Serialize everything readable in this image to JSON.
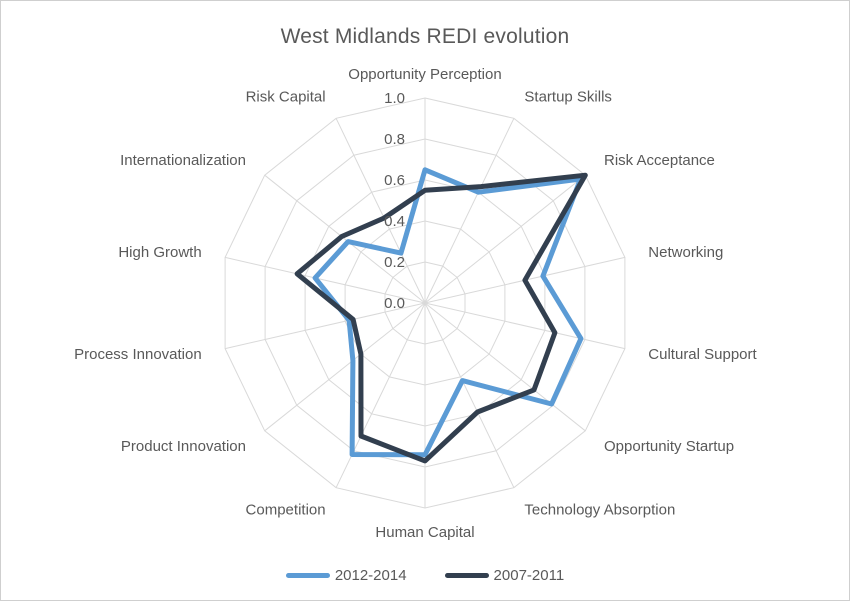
{
  "title": "West Midlands REDI evolution",
  "chart_data": {
    "type": "radar",
    "categories": [
      "Opportunity Perception",
      "Startup Skills",
      "Risk Acceptance",
      "Networking",
      "Cultural Support",
      "Opportunity Startup",
      "Technology Absorption",
      "Human Capital",
      "Competition",
      "Product Innovation",
      "Process Innovation",
      "High Growth",
      "Internationalization",
      "Risk Capital"
    ],
    "series": [
      {
        "name": "2012-2014",
        "color": "#5B9BD5",
        "values": [
          0.65,
          0.6,
          0.97,
          0.59,
          0.78,
          0.79,
          0.42,
          0.74,
          0.82,
          0.45,
          0.38,
          0.55,
          0.48,
          0.27
        ]
      },
      {
        "name": "2007-2011",
        "color": "#323F4F",
        "values": [
          0.55,
          0.63,
          1.0,
          0.5,
          0.65,
          0.68,
          0.59,
          0.77,
          0.72,
          0.4,
          0.36,
          0.64,
          0.52,
          0.46
        ]
      }
    ],
    "axis": {
      "min": 0.0,
      "max": 1.0,
      "step": 0.2,
      "tick_labels": [
        "0.0",
        "0.2",
        "0.4",
        "0.6",
        "0.8",
        "1.0"
      ]
    },
    "grid": true,
    "gridline_color": "#D9D9D9",
    "label_color": "#595959",
    "legend_position": "bottom"
  }
}
